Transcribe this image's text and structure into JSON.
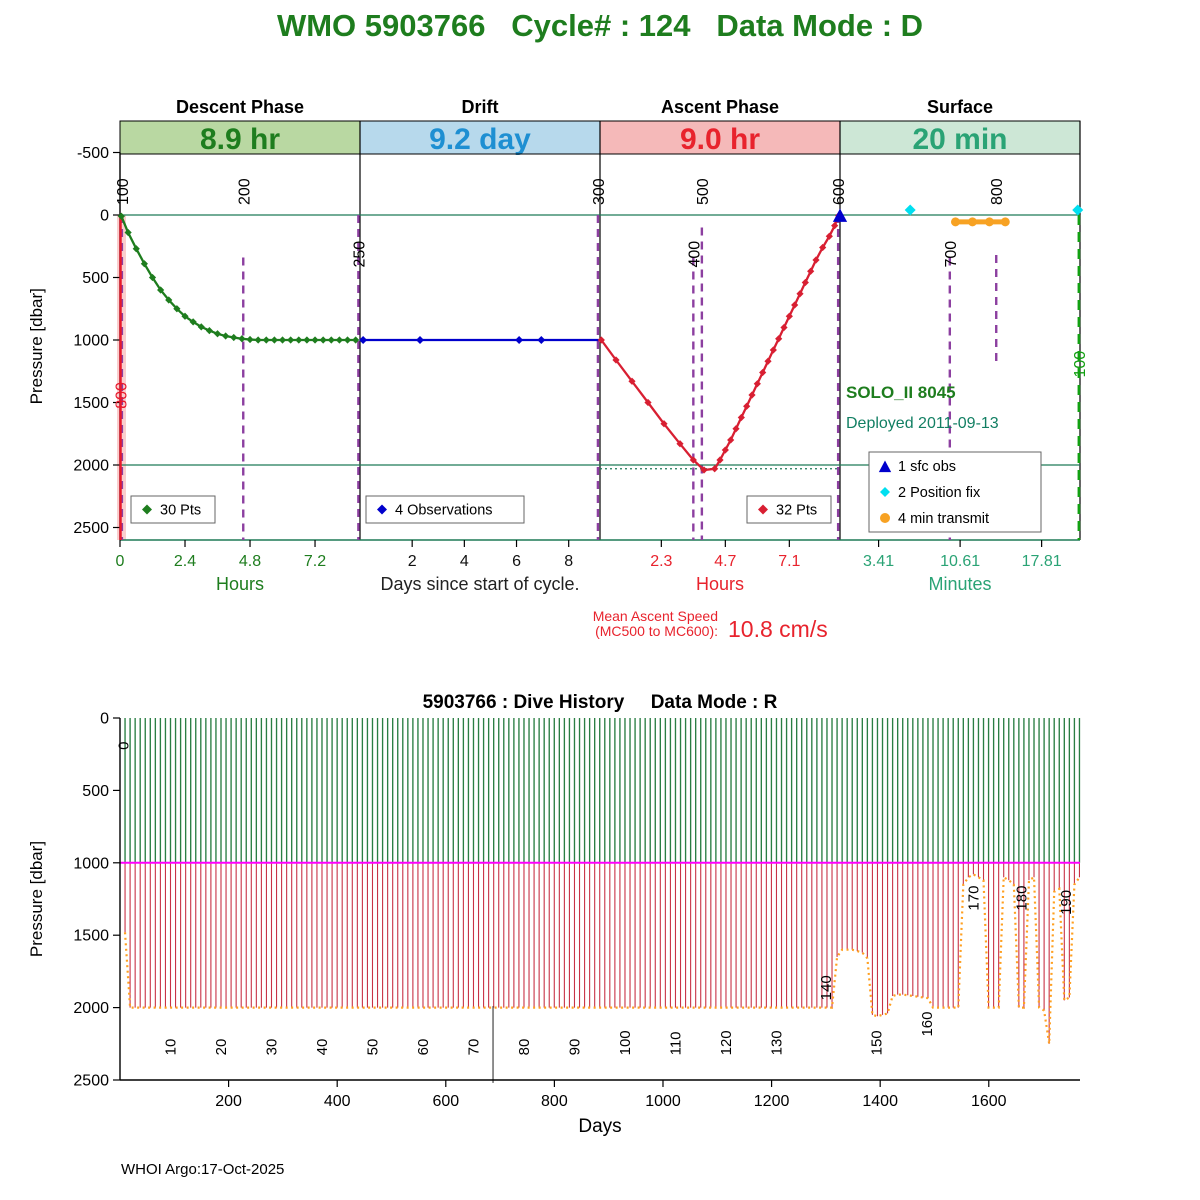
{
  "page": {
    "title": "WMO 5903766   Cycle# : 124   Data Mode : D",
    "title_color": "#1e7d1e",
    "footer": "WHOI Argo:17-Oct-2025"
  },
  "chart_data": [
    {
      "id": "cycle-timing-profile",
      "type": "line",
      "ylabel": "Pressure [dbar]",
      "ylim": [
        -500,
        2600
      ],
      "yticks": [
        "-500",
        "0",
        "500",
        "1000",
        "1500",
        "2000",
        "2500"
      ],
      "grid": false,
      "ref_pressure_lines": [
        0,
        2000
      ],
      "dotted_ref": {
        "phase": 2,
        "from_x": 0,
        "to_x": 9.0,
        "pressure": 2030
      },
      "phases": [
        {
          "name": "Descent Phase",
          "duration": "8.9 hr",
          "band_color": "#b9d8a2",
          "text_color": "#1e7d1e",
          "tick_color": "#1e7d1e",
          "axis_label": "Hours",
          "axis_label_color": "#1e7d1e",
          "xmax": 8.86,
          "ticks": [
            [
              0,
              "0"
            ],
            [
              2.4,
              "2.4"
            ],
            [
              4.8,
              "4.8"
            ],
            [
              7.2,
              "7.2"
            ]
          ]
        },
        {
          "name": "Drift",
          "duration": "9.2 day",
          "band_color": "#b7d9ec",
          "text_color": "#1e8fd2",
          "tick_color": "#111111",
          "axis_label": "Days since start of cycle.",
          "axis_label_color": "#222222",
          "xmax": 9.2,
          "ticks": [
            [
              2,
              "2"
            ],
            [
              4,
              "4"
            ],
            [
              6,
              "6"
            ],
            [
              8,
              "8"
            ]
          ]
        },
        {
          "name": "Ascent Phase",
          "duration": "9.0 hr",
          "band_color": "#f5b9b9",
          "text_color": "#e8232d",
          "tick_color": "#e8232d",
          "axis_label": "Hours",
          "axis_label_color": "#e8232d",
          "xmax": 9.0,
          "ticks": [
            [
              2.3,
              "2.3"
            ],
            [
              4.7,
              "4.7"
            ],
            [
              7.1,
              "7.1"
            ]
          ]
        },
        {
          "name": "Surface",
          "duration": "20 min",
          "band_color": "#cde7d6",
          "text_color": "#2aa375",
          "tick_color": "#2aa375",
          "axis_label": "Minutes",
          "axis_label_color": "#2aa375",
          "xmax": 21.2,
          "ticks": [
            [
              3.41,
              "3.41"
            ],
            [
              10.61,
              "10.61"
            ],
            [
              17.81,
              "17.81"
            ]
          ]
        }
      ],
      "series": [
        {
          "name": "descent",
          "phase": 0,
          "color": "#1e7d1e",
          "marker": "diamond",
          "points_label": "30 Pts",
          "x": [
            0.05,
            0.3,
            0.6,
            0.9,
            1.2,
            1.5,
            1.8,
            2.1,
            2.4,
            2.7,
            3.0,
            3.3,
            3.6,
            3.9,
            4.2,
            4.5,
            4.8,
            5.1,
            5.4,
            5.7,
            6.0,
            6.3,
            6.6,
            6.9,
            7.2,
            7.5,
            7.8,
            8.1,
            8.4,
            8.7
          ],
          "y": [
            10,
            140,
            270,
            390,
            500,
            600,
            680,
            750,
            810,
            855,
            895,
            925,
            950,
            968,
            980,
            990,
            996,
            1000,
            1000,
            1000,
            1000,
            1000,
            1000,
            1000,
            1000,
            1000,
            1000,
            1000,
            1000,
            1000
          ]
        },
        {
          "name": "drift",
          "phase": 1,
          "color": "#0000cc",
          "marker": "diamond",
          "marker_size": 4,
          "points_label": "4 Observations",
          "line_x": [
            0,
            9.2
          ],
          "line_y": [
            1000,
            1000
          ],
          "x": [
            0.12,
            2.3,
            6.1,
            6.95
          ],
          "y": [
            1000,
            1000,
            1000,
            1000
          ]
        },
        {
          "name": "ascent",
          "phase": 2,
          "color": "#d81f32",
          "marker": "diamond",
          "points_label": "32 Pts",
          "x": [
            0.05,
            0.6,
            1.2,
            1.8,
            2.4,
            3.0,
            3.5,
            3.9,
            4.3,
            4.5,
            4.7,
            4.9,
            5.1,
            5.3,
            5.5,
            5.7,
            5.9,
            6.1,
            6.3,
            6.5,
            6.7,
            6.9,
            7.1,
            7.3,
            7.5,
            7.7,
            7.9,
            8.1,
            8.35,
            8.6,
            8.8,
            8.95
          ],
          "y": [
            1000,
            1160,
            1330,
            1500,
            1670,
            1830,
            1960,
            2040,
            2030,
            1960,
            1880,
            1800,
            1710,
            1620,
            1530,
            1440,
            1350,
            1260,
            1170,
            1080,
            990,
            900,
            810,
            720,
            630,
            540,
            450,
            360,
            260,
            170,
            85,
            5
          ]
        }
      ],
      "surface_markers": [
        {
          "kind": "triangle",
          "label": "1 sfc obs",
          "phase": 2,
          "x": 9.0,
          "pressure": 0,
          "color": "#0000cc"
        },
        {
          "kind": "diamond",
          "label": "position fix",
          "phase": 3,
          "x": 6.2,
          "pressure": -40,
          "color": "#00dff0"
        },
        {
          "kind": "diamond",
          "label": "position fix",
          "phase": 3,
          "x": 21.0,
          "pressure": -40,
          "color": "#00dff0"
        },
        {
          "kind": "transmit-line",
          "label": "min transmit",
          "phase": 3,
          "x": 10.2,
          "x2": 14.6,
          "pressure": 55,
          "color": "#f7a223",
          "marker_x": [
            10.2,
            11.7,
            13.2,
            14.6
          ]
        }
      ],
      "mc_marks": [
        {
          "label": "100",
          "phase": 0,
          "x": 0.07,
          "style": "purple-dash",
          "label_bottom_p": -80,
          "top_p": 0,
          "bottom_p": 2600
        },
        {
          "label": "200",
          "phase": 0,
          "x": 4.55,
          "style": "purple-dash",
          "label_bottom_p": -80,
          "top_p": 340,
          "bottom_p": 2600
        },
        {
          "label": "250",
          "phase": 0,
          "x": 8.8,
          "style": "purple-dash",
          "label_bottom_p": 420,
          "top_p": 0,
          "bottom_p": 2600
        },
        {
          "label": "300",
          "phase": 1,
          "x": 9.12,
          "style": "purple-dash",
          "label_bottom_p": -80,
          "top_p": 0,
          "bottom_p": 2600
        },
        {
          "label": "400",
          "phase": 2,
          "x": 3.5,
          "style": "purple-dash",
          "label_bottom_p": 420,
          "top_p": 340,
          "bottom_p": 2600
        },
        {
          "label": "500",
          "phase": 2,
          "x": 3.82,
          "style": "purple-dash",
          "label_bottom_p": -80,
          "top_p": 100,
          "bottom_p": 2600
        },
        {
          "label": "600",
          "phase": 2,
          "x": 8.93,
          "style": "purple-dash",
          "label_bottom_p": -80,
          "top_p": 0,
          "bottom_p": 2600
        },
        {
          "label": "700",
          "phase": 3,
          "x": 9.7,
          "style": "purple-dash",
          "label_bottom_p": 420,
          "top_p": 340,
          "bottom_p": 2600
        },
        {
          "label": "800",
          "phase": 3,
          "x": 13.8,
          "style": "purple-dash",
          "label_bottom_p": -80,
          "top_p": 320,
          "bottom_p": 1200
        },
        {
          "label": "800",
          "phase": 0,
          "x": 0.02,
          "style": "red-solid",
          "label_bottom_p": 1550,
          "top_p": 0,
          "bottom_p": 2600
        },
        {
          "label": "100",
          "phase": 3,
          "x": 21.1,
          "style": "green-dash",
          "label_bottom_p": 1300,
          "top_p": 0,
          "bottom_p": 2600
        }
      ],
      "legend_boxes": [
        {
          "x": 131,
          "y": 496,
          "w": 84,
          "h": 27,
          "entries": [
            {
              "marker": "diamond",
              "color": "#1e7d1e",
              "label": "30 Pts"
            }
          ]
        },
        {
          "x": 366,
          "y": 496,
          "w": 158,
          "h": 27,
          "entries": [
            {
              "marker": "diamond",
              "color": "#0000cc",
              "label": "4 Observations"
            }
          ]
        },
        {
          "x": 747,
          "y": 496,
          "w": 84,
          "h": 27,
          "entries": [
            {
              "marker": "diamond",
              "color": "#d81f32",
              "label": "32 Pts"
            }
          ]
        },
        {
          "x": 869,
          "y": 452,
          "w": 172,
          "h": 80,
          "entries": [
            {
              "marker": "triangle",
              "color": "#0000cc",
              "label": "1 sfc obs"
            },
            {
              "marker": "diamond",
              "color": "#00dff0",
              "label": "2 Position fix"
            },
            {
              "marker": "circle",
              "color": "#f7a223",
              "label": "4 min transmit"
            }
          ]
        }
      ],
      "annotations": [
        {
          "text": "SOLO_II 8045",
          "color": "#1e7d1e",
          "bold": true,
          "size": 17,
          "x": 846,
          "y": 398
        },
        {
          "text": "Deployed 2011-09-13",
          "color": "#127f63",
          "bold": false,
          "size": 16,
          "x": 846,
          "y": 428
        }
      ],
      "mean_ascent": {
        "label_line1": "Mean Ascent Speed",
        "label_line2": "(MC500 to MC600):",
        "value": "10.8 cm/s",
        "color": "#e8232d"
      }
    },
    {
      "id": "dive-history",
      "type": "line",
      "title": "5903766 : Dive History     Data Mode : R",
      "xlabel": "Days",
      "ylabel": "Pressure [dbar]",
      "xlim": [
        0,
        1768
      ],
      "ylim": [
        0,
        2500
      ],
      "xticks": [
        "200",
        "400",
        "600",
        "800",
        "1000",
        "1200",
        "1400",
        "1600"
      ],
      "yticks": [
        "0",
        "500",
        "1000",
        "1500",
        "2000",
        "2500"
      ],
      "colors": {
        "descent": "#2a7e43",
        "profile": "#c83246",
        "drift_line": "#ff00ff",
        "max_depth": "#ffa020",
        "spike": "#444444"
      },
      "cycles": {
        "count": 190,
        "days_per_cycle": 9.3,
        "drift_depth": 1000,
        "default_profile_depth": 2000,
        "profile_depth_overrides": {
          "1": 1480,
          "142": 1650,
          "143": 1600,
          "144": 1600,
          "145": 1600,
          "146": 1610,
          "147": 1620,
          "148": 1660,
          "149": 2050,
          "150": 2060,
          "151": 2050,
          "152": 2040,
          "153": 1920,
          "154": 1910,
          "155": 1910,
          "156": 1915,
          "157": 1920,
          "158": 1925,
          "159": 1930,
          "160": 1935,
          "167": 1150,
          "168": 1100,
          "169": 1080,
          "170": 1100,
          "171": 1120,
          "175": 1100,
          "176": 1120,
          "177": 1150,
          "180": 1120,
          "181": 1100,
          "183": 2020,
          "184": 2250,
          "185": 1200,
          "186": 1180,
          "187": 1950,
          "188": 1930,
          "189": 1150,
          "190": 1100
        }
      },
      "anomaly_spike": {
        "day": 687,
        "from_depth": 1990,
        "to_depth": 2520
      },
      "cycle_labels": [
        {
          "label": "0",
          "day": 6,
          "bottom_depth": 220
        },
        {
          "label": "10",
          "day": 93,
          "bottom_depth": 2330
        },
        {
          "label": "20",
          "day": 186,
          "bottom_depth": 2330
        },
        {
          "label": "30",
          "day": 279,
          "bottom_depth": 2330
        },
        {
          "label": "40",
          "day": 372,
          "bottom_depth": 2330
        },
        {
          "label": "50",
          "day": 465,
          "bottom_depth": 2330
        },
        {
          "label": "60",
          "day": 558,
          "bottom_depth": 2330
        },
        {
          "label": "70",
          "day": 651,
          "bottom_depth": 2330
        },
        {
          "label": "80",
          "day": 744,
          "bottom_depth": 2330
        },
        {
          "label": "90",
          "day": 837,
          "bottom_depth": 2330
        },
        {
          "label": "100",
          "day": 930,
          "bottom_depth": 2330
        },
        {
          "label": "110",
          "day": 1023,
          "bottom_depth": 2330
        },
        {
          "label": "120",
          "day": 1116,
          "bottom_depth": 2330
        },
        {
          "label": "130",
          "day": 1209,
          "bottom_depth": 2330
        },
        {
          "label": "140",
          "day": 1300,
          "bottom_depth": 1950
        },
        {
          "label": "150",
          "day": 1393,
          "bottom_depth": 2330
        },
        {
          "label": "160",
          "day": 1486,
          "bottom_depth": 2200
        },
        {
          "label": "170",
          "day": 1572,
          "bottom_depth": 1330
        },
        {
          "label": "180",
          "day": 1660,
          "bottom_depth": 1330
        },
        {
          "label": "190",
          "day": 1742,
          "bottom_depth": 1360
        }
      ]
    }
  ]
}
